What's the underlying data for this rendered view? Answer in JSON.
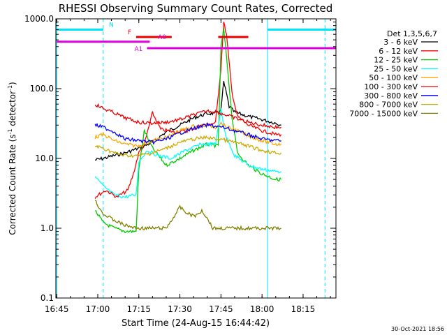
{
  "chart_data": {
    "type": "line",
    "title": "RHESSI Observing Summary Count Rates, Corrected",
    "xlabel": "Start Time (24-Aug-15 16:44:42)",
    "ylabel_main": "Corrected Count Rate (s",
    "ylabel_sup": "-1",
    "ylabel_mid": " detector",
    "ylabel_end": ")",
    "ylog": true,
    "ylim": [
      0.1,
      1000
    ],
    "xlim": [
      "16:45",
      "18:27"
    ],
    "x_ticks": [
      "16:45",
      "17:00",
      "17:15",
      "17:30",
      "17:45",
      "18:00",
      "18:15"
    ],
    "y_ticks": [
      "0.1",
      "1.0",
      "10.0",
      "100.0",
      "1000.0"
    ],
    "timestamp": "30-Oct-2021 18:56",
    "legend_title": "Det 1,3,5,6,7",
    "series": [
      {
        "name": "3 - 6 keV",
        "color": "#000000",
        "points": [
          [
            "16:59",
            9.5
          ],
          [
            "17:02",
            10
          ],
          [
            "17:06",
            11
          ],
          [
            "17:10",
            12
          ],
          [
            "17:15",
            14
          ],
          [
            "17:20",
            17
          ],
          [
            "17:25",
            24
          ],
          [
            "17:30",
            30
          ],
          [
            "17:35",
            38
          ],
          [
            "17:40",
            44
          ],
          [
            "17:43",
            44
          ],
          [
            "17:45",
            50
          ],
          [
            "17:46",
            125
          ],
          [
            "17:47",
            85
          ],
          [
            "17:48",
            55
          ],
          [
            "17:50",
            46
          ],
          [
            "17:55",
            40
          ],
          [
            "18:00",
            36
          ],
          [
            "18:05",
            32
          ],
          [
            "18:07",
            30
          ]
        ]
      },
      {
        "name": "6 - 12 keV",
        "color": "#ff0000",
        "points": [
          [
            "16:59",
            2.8
          ],
          [
            "17:03",
            3.5
          ],
          [
            "17:07",
            2.8
          ],
          [
            "17:11",
            3.5
          ],
          [
            "17:13",
            6
          ],
          [
            "17:15",
            12
          ],
          [
            "17:17",
            16
          ],
          [
            "17:20",
            45
          ],
          [
            "17:23",
            26
          ],
          [
            "17:28",
            24
          ],
          [
            "17:33",
            25
          ],
          [
            "17:38",
            30
          ],
          [
            "17:43",
            32
          ],
          [
            "17:45",
            200
          ],
          [
            "17:46",
            900
          ],
          [
            "17:47",
            600
          ],
          [
            "17:49",
            90
          ],
          [
            "17:51",
            40
          ],
          [
            "17:55",
            30
          ],
          [
            "18:00",
            25
          ],
          [
            "18:05",
            22
          ],
          [
            "18:07",
            22
          ]
        ]
      },
      {
        "name": "12 - 25 keV",
        "color": "#00cc00",
        "points": [
          [
            "16:59",
            1.8
          ],
          [
            "17:02",
            1.2
          ],
          [
            "17:06",
            1.0
          ],
          [
            "17:10",
            0.9
          ],
          [
            "17:14",
            0.9
          ],
          [
            "17:15",
            7
          ],
          [
            "17:17",
            25
          ],
          [
            "17:20",
            14
          ],
          [
            "17:25",
            8
          ],
          [
            "17:30",
            10
          ],
          [
            "17:35",
            13
          ],
          [
            "17:40",
            16
          ],
          [
            "17:44",
            15
          ],
          [
            "17:45",
            400
          ],
          [
            "17:46",
            700
          ],
          [
            "17:47",
            300
          ],
          [
            "17:49",
            40
          ],
          [
            "17:51",
            12
          ],
          [
            "17:55",
            8
          ],
          [
            "18:00",
            6
          ],
          [
            "18:05",
            5
          ],
          [
            "18:07",
            5
          ]
        ]
      },
      {
        "name": "25 - 50 keV",
        "color": "#00ffff",
        "points": [
          [
            "16:59",
            5.5
          ],
          [
            "17:02",
            4
          ],
          [
            "17:06",
            3
          ],
          [
            "17:10",
            2.8
          ],
          [
            "17:14",
            3
          ],
          [
            "17:15",
            9
          ],
          [
            "17:18",
            13
          ],
          [
            "17:22",
            11
          ],
          [
            "17:27",
            10
          ],
          [
            "17:32",
            13
          ],
          [
            "17:38",
            16
          ],
          [
            "17:43",
            16
          ],
          [
            "17:45",
            50
          ],
          [
            "17:46",
            30
          ],
          [
            "17:47",
            20
          ],
          [
            "17:50",
            11
          ],
          [
            "17:55",
            8
          ],
          [
            "18:00",
            7
          ],
          [
            "18:05",
            6.5
          ],
          [
            "18:07",
            6.5
          ]
        ]
      },
      {
        "name": "50 - 100 keV",
        "color": "#ffa500",
        "points": [
          [
            "16:59",
            20
          ],
          [
            "17:02",
            22
          ],
          [
            "17:06",
            18
          ],
          [
            "17:10",
            16
          ],
          [
            "17:15",
            15
          ],
          [
            "17:20",
            18
          ],
          [
            "17:25",
            20
          ],
          [
            "17:30",
            25
          ],
          [
            "17:35",
            29
          ],
          [
            "17:40",
            30
          ],
          [
            "17:43",
            28
          ],
          [
            "17:45",
            32
          ],
          [
            "17:47",
            28
          ],
          [
            "17:50",
            26
          ],
          [
            "17:55",
            21
          ],
          [
            "18:00",
            18
          ],
          [
            "18:05",
            16
          ],
          [
            "18:07",
            16
          ]
        ]
      },
      {
        "name": "100 - 300 keV",
        "color": "#e60000",
        "points": [
          [
            "16:59",
            60
          ],
          [
            "17:02",
            52
          ],
          [
            "17:06",
            45
          ],
          [
            "17:10",
            38
          ],
          [
            "17:15",
            33
          ],
          [
            "17:20",
            32
          ],
          [
            "17:25",
            33
          ],
          [
            "17:30",
            36
          ],
          [
            "17:35",
            42
          ],
          [
            "17:40",
            48
          ],
          [
            "17:43",
            47
          ],
          [
            "17:45",
            44
          ],
          [
            "17:47",
            42
          ],
          [
            "17:50",
            38
          ],
          [
            "17:55",
            33
          ],
          [
            "18:00",
            30
          ],
          [
            "18:05",
            28
          ],
          [
            "18:07",
            28
          ]
        ]
      },
      {
        "name": "300 - 800 keV",
        "color": "#0000ff",
        "points": [
          [
            "16:59",
            30
          ],
          [
            "17:02",
            28
          ],
          [
            "17:06",
            24
          ],
          [
            "17:10",
            19
          ],
          [
            "17:15",
            18
          ],
          [
            "17:20",
            17
          ],
          [
            "17:25",
            19
          ],
          [
            "17:30",
            23
          ],
          [
            "17:35",
            27
          ],
          [
            "17:40",
            30
          ],
          [
            "17:43",
            29
          ],
          [
            "17:45",
            28
          ],
          [
            "17:47",
            27
          ],
          [
            "17:50",
            25
          ],
          [
            "17:55",
            22
          ],
          [
            "18:00",
            19
          ],
          [
            "18:05",
            18
          ],
          [
            "18:07",
            18
          ]
        ]
      },
      {
        "name": "800 - 7000 keV",
        "color": "#ccaa00",
        "points": [
          [
            "16:59",
            15
          ],
          [
            "17:02",
            14
          ],
          [
            "17:06",
            12
          ],
          [
            "17:10",
            11
          ],
          [
            "17:15",
            11
          ],
          [
            "17:20",
            12
          ],
          [
            "17:25",
            14
          ],
          [
            "17:30",
            17
          ],
          [
            "17:35",
            19
          ],
          [
            "17:40",
            20
          ],
          [
            "17:43",
            19
          ],
          [
            "17:45",
            19
          ],
          [
            "17:47",
            18
          ],
          [
            "17:50",
            17
          ],
          [
            "17:55",
            15
          ],
          [
            "18:00",
            13
          ],
          [
            "18:05",
            12
          ],
          [
            "18:07",
            12
          ]
        ]
      },
      {
        "name": "7000 - 15000 keV",
        "color": "#808000",
        "points": [
          [
            "16:59",
            2.5
          ],
          [
            "17:02",
            1.6
          ],
          [
            "17:06",
            1.3
          ],
          [
            "17:10",
            1.1
          ],
          [
            "17:14",
            1.0
          ],
          [
            "17:20",
            1.0
          ],
          [
            "17:25",
            1.0
          ],
          [
            "17:28",
            1.5
          ],
          [
            "17:30",
            2.0
          ],
          [
            "17:33",
            1.6
          ],
          [
            "17:36",
            1.5
          ],
          [
            "17:38",
            1.8
          ],
          [
            "17:40",
            1.4
          ],
          [
            "17:42",
            1.0
          ],
          [
            "17:50",
            1.0
          ],
          [
            "18:00",
            1.0
          ],
          [
            "18:07",
            1.0
          ]
        ]
      }
    ],
    "state_bars": [
      {
        "label": "N",
        "color": "#00e5ff",
        "y": 700,
        "segments": [
          [
            "16:45",
            "17:02"
          ],
          [
            "18:02",
            "18:27"
          ]
        ]
      },
      {
        "label": "F",
        "color": "#e60000",
        "y": 550,
        "segments": [
          [
            "17:14",
            "17:27"
          ],
          [
            "17:44",
            "17:55"
          ]
        ]
      },
      {
        "label": "A0",
        "color": "#dd00dd",
        "y": 470,
        "segments": [
          [
            "16:45",
            "17:19"
          ]
        ]
      },
      {
        "label": "A1",
        "color": "#dd00dd",
        "y": 380,
        "segments": [
          [
            "17:18",
            "18:27"
          ]
        ]
      }
    ],
    "vlines": [
      {
        "time": "16:45",
        "color": "#00e5ff",
        "style": "solid"
      },
      {
        "time": "17:02",
        "color": "#00e5ff",
        "style": "dashed"
      },
      {
        "time": "18:02",
        "color": "#00e5ff",
        "style": "solid"
      },
      {
        "time": "18:23",
        "color": "#00e5ff",
        "style": "dashed"
      }
    ]
  }
}
